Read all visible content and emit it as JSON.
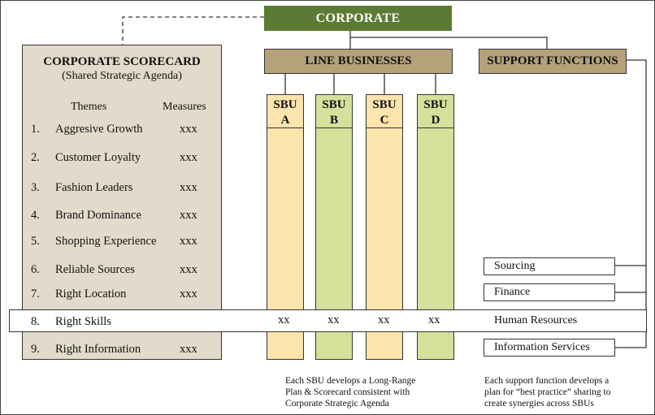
{
  "corporate": "CORPORATE",
  "line_businesses": "LINE BUSINESSES",
  "support_functions": "SUPPORT FUNCTIONS",
  "scorecard": {
    "title": "CORPORATE SCORECARD",
    "subtitle": "(Shared Strategic Agenda)",
    "themes_header": "Themes",
    "measures_header": "Measures",
    "rows": [
      {
        "num": "1.",
        "theme": "Aggresive Growth",
        "measure": "xxx"
      },
      {
        "num": "2.",
        "theme": "Customer Loyalty",
        "measure": "xxx"
      },
      {
        "num": "3.",
        "theme": "Fashion Leaders",
        "measure": "xxx"
      },
      {
        "num": "4.",
        "theme": "Brand Dominance",
        "measure": "xxx"
      },
      {
        "num": "5.",
        "theme": "Shopping Experience",
        "measure": "xxx"
      },
      {
        "num": "6.",
        "theme": "Reliable Sources",
        "measure": "xxx"
      },
      {
        "num": "7.",
        "theme": "Right Location",
        "measure": "xxx"
      },
      {
        "num": "8.",
        "theme": "Right Skills",
        "measure": ""
      },
      {
        "num": "9.",
        "theme": "Right Information",
        "measure": "xxx"
      }
    ]
  },
  "sbus": [
    {
      "line1": "SBU",
      "line2": "A",
      "cell": "xx",
      "color": "#fde4ad"
    },
    {
      "line1": "SBU",
      "line2": "B",
      "cell": "xx",
      "color": "#d3e19b"
    },
    {
      "line1": "SBU",
      "line2": "C",
      "cell": "xx",
      "color": "#fde4ad"
    },
    {
      "line1": "SBU",
      "line2": "D",
      "cell": "xx",
      "color": "#d3e19b"
    }
  ],
  "functions": [
    "Sourcing",
    "Finance",
    "Human Resources",
    "Information Services"
  ],
  "notes": {
    "sbu": [
      "Each SBU develops a Long-Range",
      "Plan & Scorecard consistent with",
      "Corporate Strategic Agenda"
    ],
    "support": [
      "Each support function develops a",
      "plan for “best practice” sharing to",
      "create synergies across SBUs"
    ]
  },
  "colors": {
    "corporate": "#5b7a34",
    "header": "#b5a27a",
    "scorecard": "#e2dbcb"
  }
}
